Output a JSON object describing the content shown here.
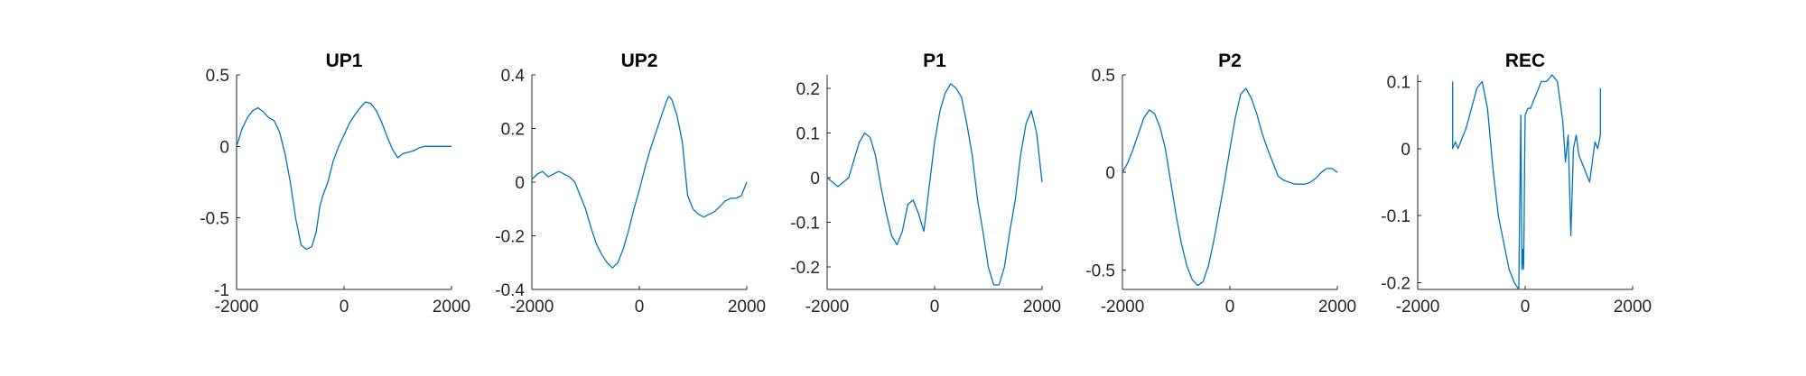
{
  "figure": {
    "line_color": "#0072BD",
    "axis_color": "#262626",
    "background": "#ffffff"
  },
  "chart_data": [
    {
      "type": "line",
      "title": "UP1",
      "xlabel": "",
      "ylabel": "",
      "grid": false,
      "xlim": [
        -2000,
        2000
      ],
      "ylim": [
        -1,
        0.5
      ],
      "xticks": [
        -2000,
        0,
        2000
      ],
      "xtick_labels": [
        "-2000",
        "0",
        "2000"
      ],
      "yticks": [
        -1,
        -0.5,
        0,
        0.5
      ],
      "ytick_labels": [
        "-1",
        "-0.5",
        "0",
        "0.5"
      ],
      "x": [
        -2000,
        -1900,
        -1800,
        -1700,
        -1600,
        -1500,
        -1400,
        -1300,
        -1200,
        -1100,
        -1000,
        -900,
        -800,
        -700,
        -600,
        -520,
        -480,
        -450,
        -400,
        -300,
        -200,
        -100,
        0,
        100,
        200,
        300,
        400,
        500,
        600,
        700,
        800,
        900,
        1000,
        1100,
        1200,
        1300,
        1400,
        1500,
        1600,
        1700,
        1800,
        1900,
        2000
      ],
      "y": [
        0.0,
        0.12,
        0.2,
        0.25,
        0.27,
        0.24,
        0.2,
        0.18,
        0.1,
        -0.05,
        -0.25,
        -0.5,
        -0.69,
        -0.72,
        -0.7,
        -0.6,
        -0.5,
        -0.42,
        -0.35,
        -0.25,
        -0.1,
        0.0,
        0.08,
        0.16,
        0.22,
        0.27,
        0.31,
        0.3,
        0.25,
        0.17,
        0.07,
        -0.02,
        -0.08,
        -0.05,
        -0.04,
        -0.03,
        -0.01,
        0.0,
        0.0,
        0.0,
        0.0,
        0.0,
        0.0
      ]
    },
    {
      "type": "line",
      "title": "UP2",
      "xlabel": "",
      "ylabel": "",
      "grid": false,
      "xlim": [
        -2000,
        2000
      ],
      "ylim": [
        -0.4,
        0.4
      ],
      "xticks": [
        -2000,
        0,
        2000
      ],
      "xtick_labels": [
        "-2000",
        "0",
        "2000"
      ],
      "yticks": [
        -0.4,
        -0.2,
        0,
        0.2,
        0.4
      ],
      "ytick_labels": [
        "-0.4",
        "-0.2",
        "0",
        "0.2",
        "0.4"
      ],
      "x": [
        -2000,
        -1900,
        -1800,
        -1750,
        -1700,
        -1600,
        -1500,
        -1400,
        -1300,
        -1200,
        -1100,
        -1000,
        -900,
        -800,
        -700,
        -600,
        -500,
        -450,
        -400,
        -300,
        -200,
        -100,
        0,
        100,
        200,
        300,
        400,
        500,
        550,
        600,
        700,
        800,
        900,
        1000,
        1100,
        1200,
        1300,
        1400,
        1500,
        1600,
        1700,
        1800,
        1900,
        2000
      ],
      "y": [
        0.01,
        0.03,
        0.04,
        0.03,
        0.02,
        0.03,
        0.04,
        0.03,
        0.02,
        0.0,
        -0.05,
        -0.1,
        -0.17,
        -0.23,
        -0.27,
        -0.3,
        -0.32,
        -0.31,
        -0.3,
        -0.25,
        -0.18,
        -0.1,
        -0.03,
        0.05,
        0.12,
        0.18,
        0.24,
        0.3,
        0.32,
        0.31,
        0.25,
        0.15,
        -0.05,
        -0.1,
        -0.12,
        -0.13,
        -0.12,
        -0.11,
        -0.09,
        -0.07,
        -0.06,
        -0.06,
        -0.05,
        0.0
      ]
    },
    {
      "type": "line",
      "title": "P1",
      "xlabel": "",
      "ylabel": "",
      "grid": false,
      "xlim": [
        -2000,
        2000
      ],
      "ylim": [
        -0.25,
        0.23
      ],
      "xticks": [
        -2000,
        0,
        2000
      ],
      "xtick_labels": [
        "-2000",
        "0",
        "2000"
      ],
      "yticks": [
        -0.2,
        -0.1,
        0,
        0.1,
        0.2
      ],
      "ytick_labels": [
        "-0.2",
        "-0.1",
        "0",
        "0.1",
        "0.2"
      ],
      "x": [
        -2000,
        -1900,
        -1800,
        -1700,
        -1600,
        -1500,
        -1400,
        -1300,
        -1200,
        -1100,
        -1000,
        -900,
        -800,
        -700,
        -600,
        -500,
        -400,
        -300,
        -200,
        -100,
        0,
        100,
        200,
        300,
        400,
        500,
        600,
        700,
        800,
        900,
        1000,
        1100,
        1200,
        1300,
        1400,
        1500,
        1600,
        1700,
        1800,
        1900,
        2000
      ],
      "y": [
        0.0,
        -0.01,
        -0.02,
        -0.01,
        0.0,
        0.04,
        0.08,
        0.1,
        0.09,
        0.05,
        -0.02,
        -0.08,
        -0.13,
        -0.15,
        -0.12,
        -0.06,
        -0.05,
        -0.08,
        -0.12,
        -0.02,
        0.08,
        0.15,
        0.19,
        0.21,
        0.2,
        0.18,
        0.12,
        0.05,
        -0.05,
        -0.12,
        -0.2,
        -0.24,
        -0.24,
        -0.2,
        -0.12,
        -0.05,
        0.05,
        0.12,
        0.15,
        0.1,
        -0.01
      ]
    },
    {
      "type": "line",
      "title": "P2",
      "xlabel": "",
      "ylabel": "",
      "grid": false,
      "xlim": [
        -2000,
        2000
      ],
      "ylim": [
        -0.6,
        0.5
      ],
      "xticks": [
        -2000,
        0,
        2000
      ],
      "xtick_labels": [
        "-2000",
        "0",
        "2000"
      ],
      "yticks": [
        -0.5,
        0,
        0.5
      ],
      "ytick_labels": [
        "-0.5",
        "0",
        "0.5"
      ],
      "x": [
        -2000,
        -1900,
        -1800,
        -1700,
        -1600,
        -1500,
        -1400,
        -1300,
        -1200,
        -1100,
        -1000,
        -900,
        -800,
        -700,
        -600,
        -500,
        -400,
        -300,
        -200,
        -100,
        0,
        100,
        200,
        300,
        400,
        500,
        600,
        700,
        800,
        900,
        1000,
        1100,
        1200,
        1300,
        1400,
        1500,
        1600,
        1700,
        1800,
        1900,
        2000
      ],
      "y": [
        0.0,
        0.05,
        0.12,
        0.2,
        0.28,
        0.32,
        0.3,
        0.23,
        0.12,
        -0.05,
        -0.22,
        -0.37,
        -0.48,
        -0.55,
        -0.58,
        -0.56,
        -0.48,
        -0.35,
        -0.2,
        -0.05,
        0.12,
        0.28,
        0.4,
        0.43,
        0.38,
        0.3,
        0.2,
        0.12,
        0.05,
        -0.02,
        -0.04,
        -0.05,
        -0.06,
        -0.06,
        -0.06,
        -0.05,
        -0.03,
        0.0,
        0.02,
        0.02,
        0.0
      ]
    },
    {
      "type": "line",
      "title": "REC",
      "xlabel": "",
      "ylabel": "",
      "grid": false,
      "xlim": [
        -2000,
        2000
      ],
      "ylim": [
        -0.21,
        0.11
      ],
      "xticks": [
        -2000,
        0,
        2000
      ],
      "xtick_labels": [
        "-2000",
        "0",
        "2000"
      ],
      "yticks": [
        -0.2,
        -0.1,
        0,
        0.1
      ],
      "ytick_labels": [
        "-0.2",
        "-0.1",
        "0",
        "0.1"
      ],
      "x": [
        -1350,
        -1350,
        -1300,
        -1250,
        -1200,
        -1100,
        -1000,
        -900,
        -800,
        -700,
        -600,
        -500,
        -400,
        -300,
        -200,
        -120,
        -80,
        -60,
        -40,
        -30,
        -20,
        -10,
        0,
        50,
        100,
        150,
        200,
        250,
        300,
        400,
        500,
        600,
        700,
        750,
        800,
        850,
        900,
        950,
        1000,
        1100,
        1200,
        1300,
        1350,
        1400,
        1400
      ],
      "y": [
        0.1,
        0.0,
        0.01,
        0.0,
        0.01,
        0.03,
        0.06,
        0.09,
        0.1,
        0.06,
        -0.03,
        -0.1,
        -0.14,
        -0.18,
        -0.2,
        -0.21,
        0.05,
        -0.18,
        -0.15,
        -0.18,
        -0.12,
        -0.02,
        0.05,
        0.06,
        0.06,
        0.07,
        0.08,
        0.09,
        0.1,
        0.1,
        0.11,
        0.1,
        0.04,
        -0.02,
        0.02,
        -0.13,
        0.0,
        0.02,
        -0.01,
        -0.03,
        -0.05,
        0.01,
        0.0,
        0.02,
        0.09
      ]
    }
  ]
}
